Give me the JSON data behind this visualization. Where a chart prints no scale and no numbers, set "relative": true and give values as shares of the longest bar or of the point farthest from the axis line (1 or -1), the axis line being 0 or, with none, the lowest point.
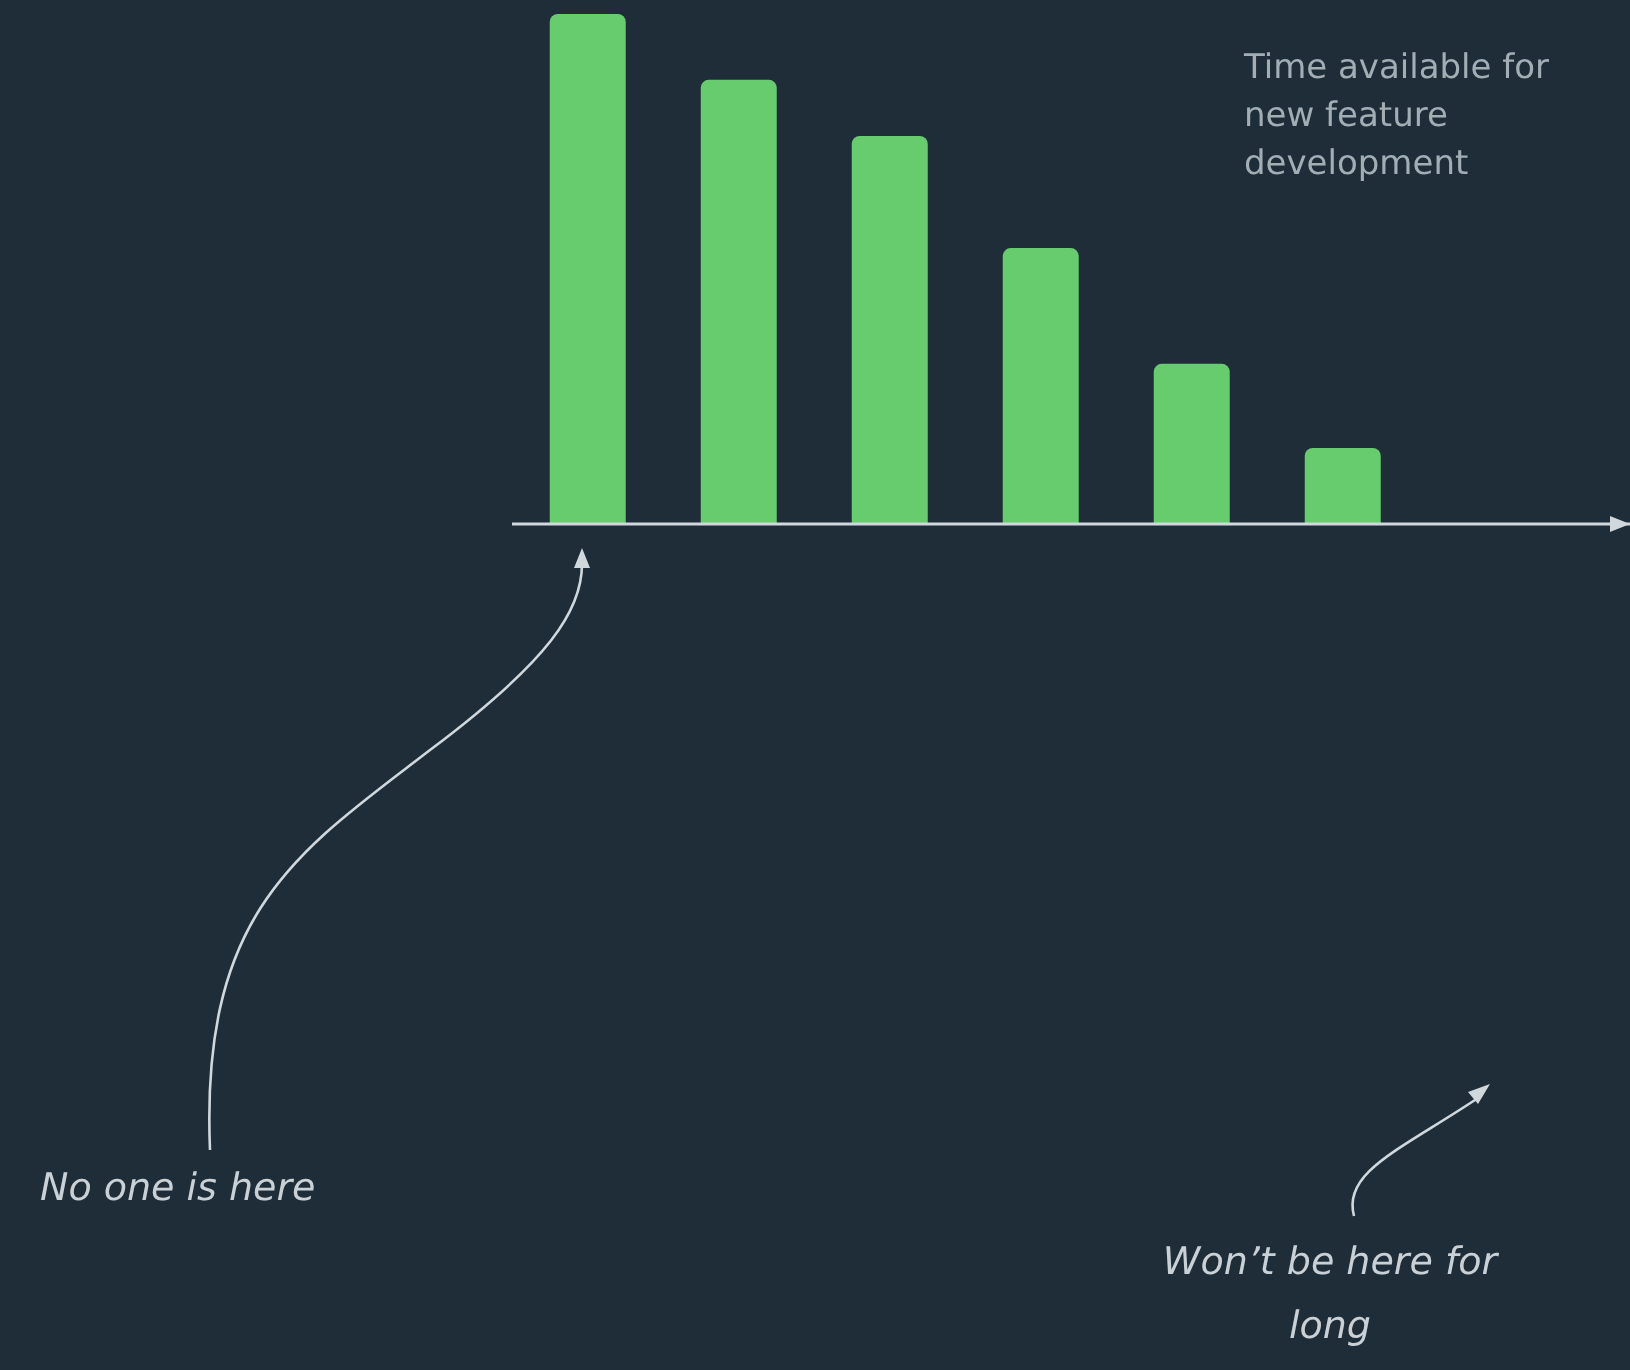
{
  "chart_data": {
    "type": "bar",
    "relative": true,
    "categories": [
      null,
      null,
      null,
      null,
      null,
      null
    ],
    "values": [
      1,
      0.871,
      0.761,
      0.541,
      0.314,
      0.149
    ],
    "color": "#66cc6e",
    "annotations": [
      "Time available for new feature development",
      "No one is here",
      "Won’t be here for long"
    ]
  }
}
